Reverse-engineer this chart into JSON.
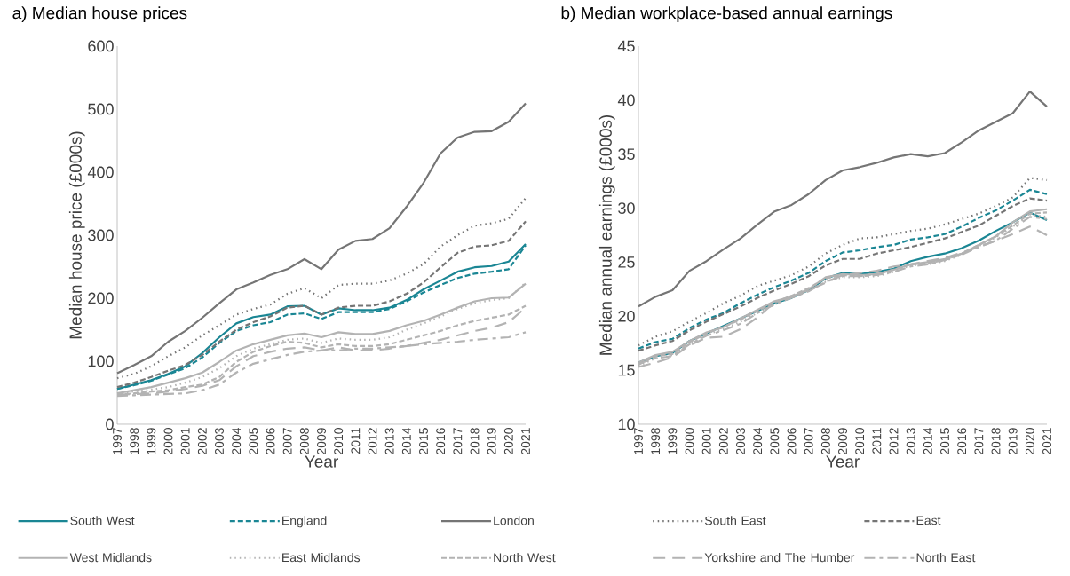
{
  "chart_data": [
    {
      "type": "line",
      "title": "a) Median house prices",
      "xlabel": "Year",
      "ylabel": "Median house price (£000s)",
      "categories": [
        "1997",
        "1998",
        "1999",
        "2000",
        "2001",
        "2002",
        "2003",
        "2004",
        "2005",
        "2006",
        "2007",
        "2008",
        "2009",
        "2010",
        "2011",
        "2012",
        "2013",
        "2014",
        "2015",
        "2016",
        "2017",
        "2018",
        "2019",
        "2020",
        "2021"
      ],
      "ylim": [
        0,
        600
      ],
      "yticks": [
        0,
        100,
        200,
        300,
        400,
        500,
        600
      ],
      "grid": false,
      "legend": "bottom",
      "series": [
        {
          "name": "South West",
          "color": "#1a8694",
          "line_style": "solid",
          "values": [
            56,
            63,
            70,
            80,
            92,
            113,
            138,
            160,
            170,
            174,
            187,
            188,
            174,
            184,
            181,
            181,
            185,
            197,
            214,
            228,
            242,
            249,
            251,
            258,
            286
          ]
        },
        {
          "name": "England",
          "color": "#1a8694",
          "line_style": "dashed",
          "values": [
            56,
            62,
            69,
            79,
            89,
            106,
            129,
            148,
            157,
            162,
            174,
            176,
            167,
            178,
            178,
            178,
            183,
            195,
            209,
            221,
            232,
            239,
            242,
            246,
            284
          ]
        },
        {
          "name": "London",
          "color": "#757575",
          "line_style": "solid",
          "values": [
            81,
            94,
            108,
            131,
            148,
            169,
            192,
            214,
            225,
            237,
            246,
            262,
            246,
            277,
            291,
            294,
            311,
            345,
            383,
            430,
            455,
            464,
            465,
            480,
            509
          ]
        },
        {
          "name": "South East",
          "color": "#757575",
          "line_style": "dotted",
          "values": [
            73,
            80,
            92,
            108,
            122,
            141,
            157,
            174,
            183,
            190,
            207,
            216,
            200,
            221,
            223,
            223,
            228,
            239,
            254,
            282,
            300,
            315,
            319,
            326,
            359
          ]
        },
        {
          "name": "East",
          "color": "#757575",
          "line_style": "dashed",
          "values": [
            59,
            66,
            75,
            85,
            94,
            110,
            131,
            150,
            162,
            171,
            185,
            188,
            174,
            185,
            188,
            188,
            195,
            207,
            225,
            249,
            272,
            282,
            284,
            291,
            322
          ]
        },
        {
          "name": "West Midlands",
          "color": "#b3b3b3",
          "line_style": "solid",
          "values": [
            49,
            54,
            59,
            66,
            73,
            82,
            99,
            117,
            127,
            134,
            141,
            144,
            138,
            146,
            143,
            143,
            148,
            157,
            164,
            174,
            185,
            195,
            200,
            201,
            223
          ]
        },
        {
          "name": "East Midlands",
          "color": "#b3b3b3",
          "line_style": "dotted",
          "values": [
            48,
            52,
            55,
            59,
            66,
            75,
            89,
            108,
            120,
            127,
            134,
            136,
            129,
            136,
            134,
            134,
            138,
            150,
            160,
            171,
            183,
            192,
            197,
            200,
            225
          ]
        },
        {
          "name": "North West",
          "color": "#b3b3b3",
          "line_style": "dashed",
          "values": [
            47,
            49,
            52,
            54,
            59,
            63,
            75,
            99,
            115,
            124,
            131,
            129,
            122,
            127,
            124,
            124,
            127,
            134,
            141,
            148,
            157,
            164,
            169,
            174,
            188
          ]
        },
        {
          "name": "Yorkshire and The Humber",
          "color": "#b3b3b3",
          "line_style": "long dashed",
          "values": [
            47,
            48,
            49,
            52,
            56,
            61,
            70,
            92,
            108,
            115,
            120,
            122,
            117,
            122,
            117,
            117,
            120,
            124,
            129,
            134,
            141,
            148,
            153,
            162,
            185
          ]
        },
        {
          "name": "North East",
          "color": "#b3b3b3",
          "line_style": "dashdotted",
          "values": [
            45,
            46,
            47,
            48,
            49,
            54,
            63,
            82,
            96,
            103,
            110,
            115,
            117,
            117,
            120,
            120,
            122,
            124,
            127,
            129,
            131,
            134,
            136,
            138,
            146
          ]
        }
      ]
    },
    {
      "type": "line",
      "title": "b) Median workplace-based annual earnings",
      "xlabel": "Year",
      "ylabel": "Median annual earnings (£000s)",
      "categories": [
        "1997",
        "1998",
        "1999",
        "2000",
        "2001",
        "2002",
        "2003",
        "2004",
        "2005",
        "2006",
        "2007",
        "2008",
        "2009",
        "2010",
        "2011",
        "2012",
        "2013",
        "2014",
        "2015",
        "2016",
        "2017",
        "2018",
        "2019",
        "2020",
        "2021"
      ],
      "ylim": [
        10,
        45
      ],
      "yticks": [
        10,
        15,
        20,
        25,
        30,
        35,
        40,
        45
      ],
      "grid": false,
      "series": [
        {
          "color": "#1a8694",
          "line_style": "solid",
          "values": [
            15.7,
            16.3,
            16.6,
            17.7,
            18.4,
            19.1,
            19.8,
            20.5,
            21.2,
            21.7,
            22.4,
            23.5,
            24.0,
            23.9,
            24.1,
            24.4,
            25.1,
            25.5,
            25.8,
            26.3,
            27.0,
            27.9,
            28.7,
            29.6,
            28.9
          ]
        },
        {
          "color": "#1a8694",
          "line_style": "dashed",
          "values": [
            17.0,
            17.6,
            17.9,
            18.9,
            19.7,
            20.3,
            21.2,
            22.0,
            22.7,
            23.3,
            24.0,
            25.1,
            25.9,
            26.1,
            26.4,
            26.6,
            27.1,
            27.3,
            27.6,
            28.3,
            29.1,
            29.8,
            30.7,
            31.7,
            31.3
          ]
        },
        {
          "color": "#757575",
          "line_style": "solid",
          "values": [
            20.9,
            21.8,
            22.4,
            24.2,
            25.1,
            26.2,
            27.2,
            28.5,
            29.7,
            30.3,
            31.3,
            32.6,
            33.5,
            33.8,
            34.2,
            34.7,
            35.0,
            34.8,
            35.1,
            36.1,
            37.2,
            38.0,
            38.8,
            40.8,
            39.4
          ]
        },
        {
          "color": "#757575",
          "line_style": "dotted",
          "values": [
            17.3,
            18.1,
            18.6,
            19.5,
            20.3,
            21.2,
            21.9,
            22.8,
            23.3,
            23.8,
            24.6,
            25.8,
            26.6,
            27.2,
            27.3,
            27.6,
            27.9,
            28.1,
            28.5,
            29.0,
            29.5,
            30.2,
            31.0,
            32.8,
            32.6
          ]
        },
        {
          "color": "#757575",
          "line_style": "dashed",
          "values": [
            16.8,
            17.3,
            17.7,
            18.7,
            19.5,
            20.2,
            20.9,
            21.7,
            22.4,
            23.0,
            23.7,
            24.7,
            25.3,
            25.3,
            25.8,
            26.1,
            26.4,
            26.8,
            27.2,
            27.8,
            28.4,
            29.3,
            30.2,
            30.9,
            30.7
          ]
        },
        {
          "color": "#b3b3b3",
          "line_style": "solid",
          "values": [
            15.7,
            16.4,
            16.7,
            17.7,
            18.5,
            19.0,
            19.8,
            20.6,
            21.4,
            21.8,
            22.5,
            23.6,
            23.9,
            23.8,
            23.9,
            24.3,
            24.8,
            25.0,
            25.3,
            25.8,
            26.6,
            27.4,
            28.7,
            29.7,
            29.9
          ]
        },
        {
          "color": "#b3b3b3",
          "line_style": "dotted",
          "values": [
            15.4,
            16.1,
            16.4,
            17.4,
            18.3,
            18.8,
            19.5,
            20.3,
            21.1,
            21.7,
            22.4,
            23.2,
            23.6,
            23.6,
            23.7,
            24.1,
            24.7,
            24.8,
            25.1,
            25.7,
            26.5,
            27.3,
            28.3,
            29.4,
            29.2
          ]
        },
        {
          "color": "#b3b3b3",
          "line_style": "dashed",
          "values": [
            15.5,
            16.3,
            16.5,
            17.6,
            18.4,
            19.0,
            19.7,
            20.5,
            21.3,
            21.9,
            22.6,
            23.5,
            23.8,
            23.7,
            23.9,
            24.3,
            24.8,
            24.9,
            25.2,
            25.8,
            26.6,
            27.4,
            28.4,
            29.5,
            29.6
          ]
        },
        {
          "color": "#b3b3b3",
          "line_style": "long dashed",
          "values": [
            15.3,
            15.7,
            16.2,
            17.3,
            18.0,
            18.1,
            18.8,
            19.9,
            21.3,
            21.8,
            22.4,
            23.1,
            23.8,
            24.0,
            24.2,
            24.6,
            24.8,
            25.1,
            25.4,
            25.9,
            26.4,
            27.0,
            27.6,
            28.3,
            27.5
          ]
        },
        {
          "color": "#b3b3b3",
          "line_style": "dashdotted",
          "values": [
            15.6,
            16.1,
            16.3,
            17.4,
            18.2,
            18.7,
            19.3,
            20.3,
            21.1,
            21.7,
            22.3,
            23.2,
            23.7,
            23.7,
            23.8,
            24.1,
            24.6,
            24.8,
            25.2,
            25.7,
            26.4,
            27.0,
            28.1,
            29.2,
            29.0
          ]
        }
      ]
    }
  ]
}
